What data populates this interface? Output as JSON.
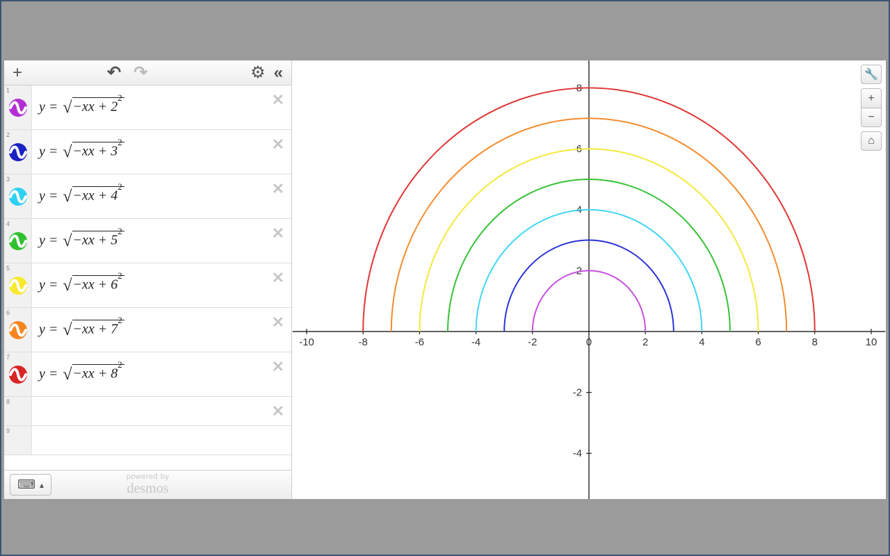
{
  "toolbar": {
    "add_label": "+",
    "undo_label": "↶",
    "redo_label": "↷",
    "settings_label": "⚙",
    "collapse_label": "«"
  },
  "expressions": [
    {
      "idx": "1",
      "color": "#b32fd4",
      "const": "2"
    },
    {
      "idx": "2",
      "color": "#1a22c2",
      "const": "3"
    },
    {
      "idx": "3",
      "color": "#2ed1f2",
      "const": "4"
    },
    {
      "idx": "4",
      "color": "#30c030",
      "const": "5"
    },
    {
      "idx": "5",
      "color": "#f7e92e",
      "const": "6"
    },
    {
      "idx": "6",
      "color": "#f5861f",
      "const": "7"
    },
    {
      "idx": "7",
      "color": "#d92525",
      "const": "8"
    }
  ],
  "empty_rows": [
    "8",
    "9"
  ],
  "footer": {
    "keyboard_glyph": "⌨",
    "caret_glyph": "▴",
    "powered_top": "powered by",
    "powered_brand": "desmos"
  },
  "graph": {
    "xlim": [
      -10.5,
      10.5
    ],
    "ylim": [
      -5.5,
      8.9
    ],
    "x_ticks": [
      -10,
      -8,
      -6,
      -4,
      -2,
      0,
      2,
      4,
      6,
      8,
      10
    ],
    "y_ticks": [
      -4,
      -2,
      2,
      4,
      6,
      8
    ],
    "grid_color": "#ffffff",
    "axis_color": "#000000",
    "curves": [
      {
        "radius": 2,
        "color": "#c64fe0"
      },
      {
        "radius": 3,
        "color": "#2a33d6"
      },
      {
        "radius": 4,
        "color": "#40d6f5"
      },
      {
        "radius": 5,
        "color": "#35c235"
      },
      {
        "radius": 6,
        "color": "#f5e93a"
      },
      {
        "radius": 7,
        "color": "#f58b2d"
      },
      {
        "radius": 8,
        "color": "#e23434"
      }
    ],
    "tools": {
      "wrench": "🔧",
      "zoom_in": "+",
      "zoom_out": "−",
      "home": "⌂"
    }
  }
}
